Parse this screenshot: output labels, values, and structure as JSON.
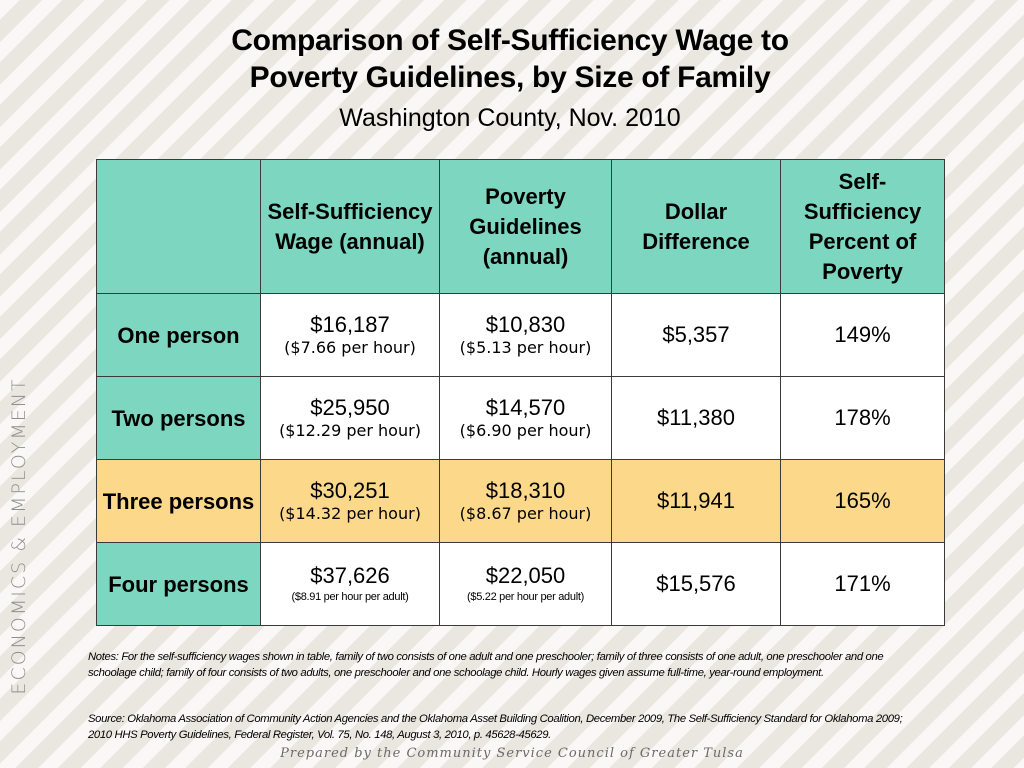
{
  "side_label": "ECONOMICS & EMPLOYMENT",
  "title_line1": "Comparison of Self-Sufficiency Wage to",
  "title_line2": "Poverty Guidelines, by Size of Family",
  "subtitle": "Washington County, Nov. 2010",
  "table": {
    "headers": [
      "",
      "Self-Sufficiency Wage (annual)",
      "Poverty Guidelines (annual)",
      "Dollar Difference",
      "Self-Sufficiency Percent of Poverty"
    ],
    "rows": [
      {
        "label": "One person",
        "ssw": "$16,187",
        "ssw_hourly": "($7.66 per hour)",
        "poverty": "$10,830",
        "poverty_hourly": "($5.13 per hour)",
        "difference": "$5,357",
        "percent": "149%"
      },
      {
        "label": "Two persons",
        "ssw": "$25,950",
        "ssw_hourly": "($12.29 per hour)",
        "poverty": "$14,570",
        "poverty_hourly": "($6.90 per hour)",
        "difference": "$11,380",
        "percent": "178%"
      },
      {
        "label": "Three persons",
        "ssw": "$30,251",
        "ssw_hourly": "($14.32 per hour)",
        "poverty": "$18,310",
        "poverty_hourly": "($8.67 per hour)",
        "difference": "$11,941",
        "percent": "165%"
      },
      {
        "label": "Four persons",
        "ssw": "$37,626",
        "ssw_hourly": "($8.91 per hour per adult)",
        "poverty": "$22,050",
        "poverty_hourly": "($5.22 per hour per adult)",
        "difference": "$15,576",
        "percent": "171%"
      }
    ],
    "highlight_row": 2
  },
  "notes": "Notes:  For the self-sufficiency wages shown in table, family of two consists of one adult and one preschooler; family of three consists of one adult, one preschooler and one schoolage child; family of four consists of two adults, one preschooler and one schoolage child.  Hourly wages given assume full-time, year-round employment.",
  "source": "Source:  Oklahoma Association of Community Action Agencies and the Oklahoma Asset Building Coalition, December 2009, The Self-Sufficiency Standard for Oklahoma 2009; 2010 HHS Poverty Guidelines, Federal Register, Vol. 75, No. 148, August 3, 2010, p. 45628-45629.",
  "footer": "Prepared by the Community Service Council of Greater Tulsa",
  "colors": {
    "header_teal": "#7dd6c0",
    "highlight_yellow": "#fcd88a",
    "cell_white": "#ffffff"
  }
}
